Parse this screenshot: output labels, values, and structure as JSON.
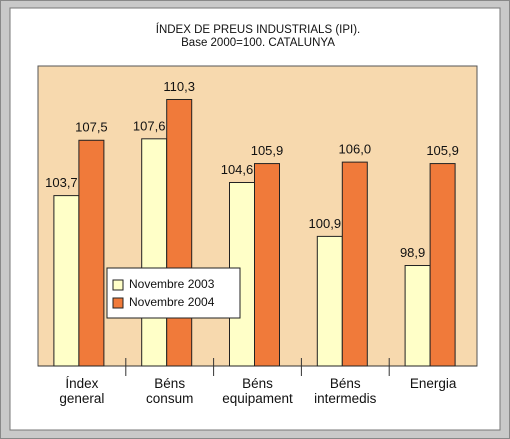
{
  "chart_data": {
    "type": "bar",
    "title": "ÍNDEX DE PREUS INDUSTRIALS (IPI).",
    "subtitle": "Base 2000=100. CATALUNYA",
    "categories": [
      "Índex general",
      "Béns consum",
      "Béns equipament",
      "Béns intermedis",
      "Energia"
    ],
    "series": [
      {
        "name": "Novembre 2003",
        "color": "#ffffc8",
        "values": [
          103.7,
          107.6,
          104.6,
          100.9,
          98.9
        ],
        "value_labels": [
          "103,7",
          "107,6",
          "104,6",
          "100,9",
          "98,9"
        ]
      },
      {
        "name": "Novembre 2004",
        "color": "#f07a3a",
        "values": [
          107.5,
          110.3,
          105.9,
          106.0,
          105.9
        ],
        "value_labels": [
          "107,5",
          "110,3",
          "105,9",
          "106,0",
          "105,9"
        ]
      }
    ],
    "ylim": [
      92,
      112.6
    ],
    "plot_background": "#f7d9ae"
  }
}
